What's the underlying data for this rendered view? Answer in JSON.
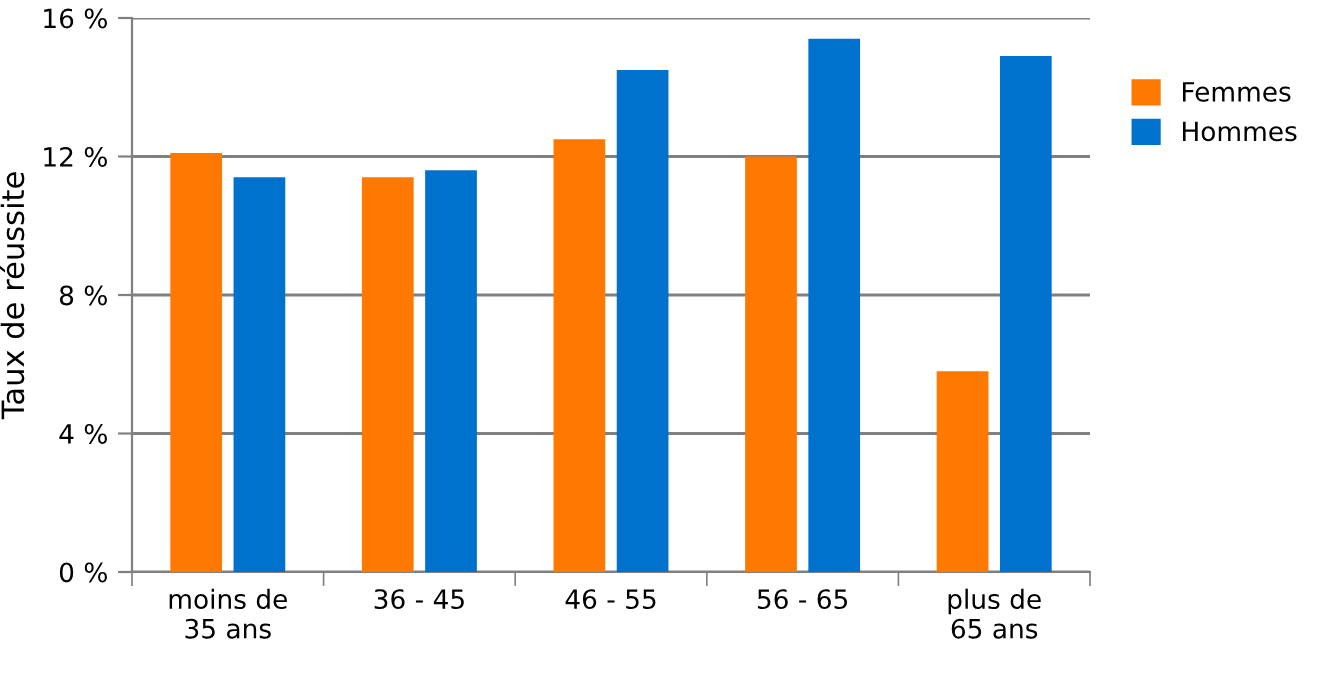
{
  "chart_data": {
    "type": "bar",
    "ylabel": "Taux de réussite",
    "categories": [
      "moins de\n35 ans",
      "36 - 45",
      "46 - 55",
      "56 - 65",
      "plus de\n65 ans"
    ],
    "series": [
      {
        "name": "Femmes",
        "color": "#ff7800",
        "values": [
          12.1,
          11.4,
          12.5,
          12.0,
          5.8
        ]
      },
      {
        "name": "Hommes",
        "color": "#0072ce",
        "values": [
          11.4,
          11.6,
          14.5,
          15.4,
          14.9
        ]
      }
    ],
    "ylim": [
      0,
      16
    ],
    "yticks": [
      {
        "value": 0,
        "label": "0 %"
      },
      {
        "value": 4,
        "label": "4 %"
      },
      {
        "value": 8,
        "label": "8 %"
      },
      {
        "value": 12,
        "label": "12 %"
      },
      {
        "value": 16,
        "label": "16 %"
      }
    ],
    "grid": "y",
    "legend": "right"
  }
}
